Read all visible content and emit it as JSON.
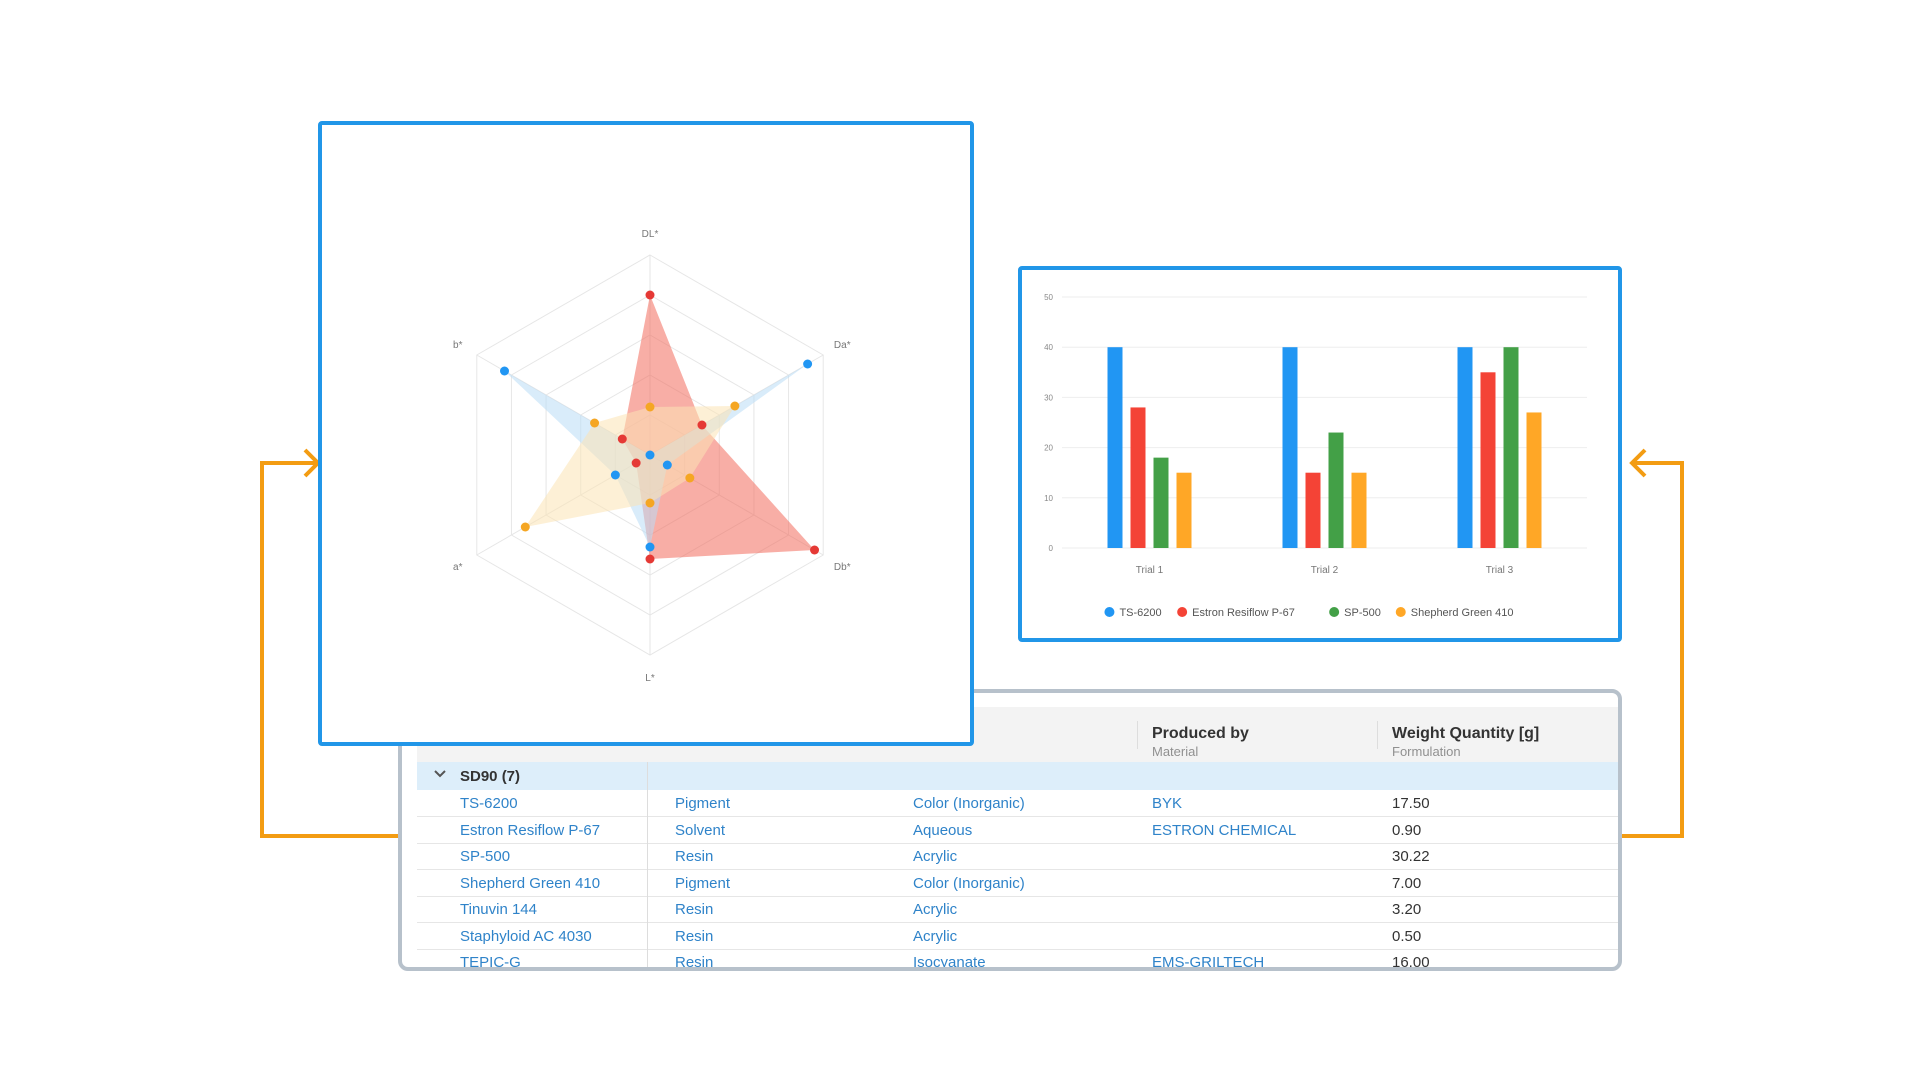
{
  "colors": {
    "frame_border": "#2196e8",
    "connector": "#f39c12",
    "table_border": "#b7c1cb",
    "link_text": "#2f83c9",
    "group_row_bg": "#ddeefa"
  },
  "radar": {
    "axes": [
      "DL*",
      "Da*",
      "Db*",
      "L*",
      "a*",
      "b*"
    ],
    "rings": 5,
    "series": [
      {
        "color": "#e53935",
        "fill": "#f26c5c",
        "values": [
          0.8,
          0.3,
          0.95,
          0.52,
          0.08,
          0.16
        ]
      },
      {
        "color": "#2196f3",
        "fill": "#b9dcf6",
        "values": [
          0.0,
          0.91,
          0.1,
          0.46,
          0.2,
          0.84
        ]
      },
      {
        "color": "#f5a623",
        "fill": "#fbe3b4",
        "values": [
          0.24,
          0.49,
          0.23,
          0.24,
          0.72,
          0.32
        ]
      }
    ]
  },
  "bar_chart": {
    "chart_data": {
      "type": "bar",
      "categories": [
        "Trial 1",
        "Trial 2",
        "Trial 3"
      ],
      "series": [
        {
          "name": "TS-6200",
          "color": "#2196f3",
          "values": [
            40,
            40,
            40
          ]
        },
        {
          "name": "Estron Resiflow P-67",
          "color": "#f44336",
          "values": [
            28,
            15,
            35
          ]
        },
        {
          "name": "SP-500",
          "color": "#43a047",
          "values": [
            18,
            23,
            40
          ]
        },
        {
          "name": "Shepherd Green 410",
          "color": "#ffa726",
          "values": [
            15,
            15,
            27
          ]
        }
      ],
      "y_ticks": [
        0,
        10,
        20,
        30,
        40,
        50
      ],
      "ylim": [
        0,
        50
      ],
      "grid": true,
      "legend_position": "bottom"
    }
  },
  "table": {
    "columns": [
      {
        "title": "Produced by",
        "subtitle": "Material"
      },
      {
        "title": "Weight Quantity [g]",
        "subtitle": "Formulation"
      }
    ],
    "group": {
      "label": "SD90 (7)"
    },
    "rows": [
      {
        "name": "TS-6200",
        "type": "Pigment",
        "category": "Color (Inorganic)",
        "producer": "BYK",
        "weight": "17.50"
      },
      {
        "name": "Estron Resiflow P-67",
        "type": "Solvent",
        "category": "Aqueous",
        "producer": "ESTRON CHEMICAL",
        "weight": "0.90"
      },
      {
        "name": "SP-500",
        "type": "Resin",
        "category": "Acrylic",
        "producer": "",
        "weight": "30.22"
      },
      {
        "name": "Shepherd Green 410",
        "type": "Pigment",
        "category": "Color (Inorganic)",
        "producer": "",
        "weight": "7.00"
      },
      {
        "name": "Tinuvin 144",
        "type": "Resin",
        "category": "Acrylic",
        "producer": "",
        "weight": "3.20"
      },
      {
        "name": "Staphyloid AC 4030",
        "type": "Resin",
        "category": "Acrylic",
        "producer": "",
        "weight": "0.50"
      },
      {
        "name": "TEPIC-G",
        "type": "Resin",
        "category": "Isocyanate",
        "producer": "EMS-GRILTECH",
        "weight": "16.00"
      }
    ]
  }
}
